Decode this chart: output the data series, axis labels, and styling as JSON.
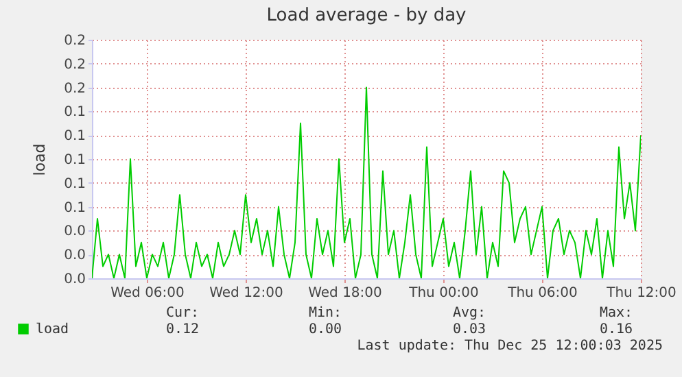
{
  "chart_data": {
    "type": "line",
    "title": "Load average - by day",
    "ylabel": "load",
    "x": [
      "2025-12-24T02:40",
      "2025-12-24T03:00",
      "2025-12-24T03:20",
      "2025-12-24T03:40",
      "2025-12-24T04:00",
      "2025-12-24T04:20",
      "2025-12-24T04:40",
      "2025-12-24T05:00",
      "2025-12-24T05:20",
      "2025-12-24T05:40",
      "2025-12-24T06:00",
      "2025-12-24T06:20",
      "2025-12-24T06:40",
      "2025-12-24T07:00",
      "2025-12-24T07:20",
      "2025-12-24T07:40",
      "2025-12-24T08:00",
      "2025-12-24T08:20",
      "2025-12-24T08:40",
      "2025-12-24T09:00",
      "2025-12-24T09:20",
      "2025-12-24T09:40",
      "2025-12-24T10:00",
      "2025-12-24T10:20",
      "2025-12-24T10:40",
      "2025-12-24T11:00",
      "2025-12-24T11:20",
      "2025-12-24T11:40",
      "2025-12-24T12:00",
      "2025-12-24T12:20",
      "2025-12-24T12:40",
      "2025-12-24T13:00",
      "2025-12-24T13:20",
      "2025-12-24T13:40",
      "2025-12-24T14:00",
      "2025-12-24T14:20",
      "2025-12-24T14:40",
      "2025-12-24T15:00",
      "2025-12-24T15:20",
      "2025-12-24T15:40",
      "2025-12-24T16:00",
      "2025-12-24T16:20",
      "2025-12-24T16:40",
      "2025-12-24T17:00",
      "2025-12-24T17:20",
      "2025-12-24T17:40",
      "2025-12-24T18:00",
      "2025-12-24T18:20",
      "2025-12-24T18:40",
      "2025-12-24T19:00",
      "2025-12-24T19:20",
      "2025-12-24T19:40",
      "2025-12-24T20:00",
      "2025-12-24T20:20",
      "2025-12-24T20:40",
      "2025-12-24T21:00",
      "2025-12-24T21:20",
      "2025-12-24T21:40",
      "2025-12-24T22:00",
      "2025-12-24T22:20",
      "2025-12-24T22:40",
      "2025-12-24T23:00",
      "2025-12-24T23:20",
      "2025-12-24T23:40",
      "2025-12-25T00:00",
      "2025-12-25T00:20",
      "2025-12-25T00:40",
      "2025-12-25T01:00",
      "2025-12-25T01:20",
      "2025-12-25T01:40",
      "2025-12-25T02:00",
      "2025-12-25T02:20",
      "2025-12-25T02:40",
      "2025-12-25T03:00",
      "2025-12-25T03:20",
      "2025-12-25T03:40",
      "2025-12-25T04:00",
      "2025-12-25T04:20",
      "2025-12-25T04:40",
      "2025-12-25T05:00",
      "2025-12-25T05:20",
      "2025-12-25T05:40",
      "2025-12-25T06:00",
      "2025-12-25T06:20",
      "2025-12-25T06:40",
      "2025-12-25T07:00",
      "2025-12-25T07:20",
      "2025-12-25T07:40",
      "2025-12-25T08:00",
      "2025-12-25T08:20",
      "2025-12-25T08:40",
      "2025-12-25T09:00",
      "2025-12-25T09:20",
      "2025-12-25T09:40",
      "2025-12-25T10:00",
      "2025-12-25T10:20",
      "2025-12-25T10:40",
      "2025-12-25T11:00",
      "2025-12-25T11:20",
      "2025-12-25T11:40",
      "2025-12-25T12:00"
    ],
    "series": [
      {
        "name": "load",
        "color": "#00cc00",
        "values": [
          0.0,
          0.05,
          0.01,
          0.02,
          0.0,
          0.02,
          0.0,
          0.1,
          0.01,
          0.03,
          0.0,
          0.02,
          0.01,
          0.03,
          0.0,
          0.02,
          0.07,
          0.02,
          0.0,
          0.03,
          0.01,
          0.02,
          0.0,
          0.03,
          0.01,
          0.02,
          0.04,
          0.02,
          0.07,
          0.03,
          0.05,
          0.02,
          0.04,
          0.01,
          0.06,
          0.02,
          0.0,
          0.03,
          0.13,
          0.02,
          0.0,
          0.05,
          0.02,
          0.04,
          0.01,
          0.1,
          0.03,
          0.05,
          0.0,
          0.02,
          0.16,
          0.02,
          0.0,
          0.09,
          0.02,
          0.04,
          0.0,
          0.03,
          0.07,
          0.02,
          0.0,
          0.11,
          0.01,
          0.03,
          0.05,
          0.01,
          0.03,
          0.0,
          0.04,
          0.09,
          0.02,
          0.06,
          0.0,
          0.03,
          0.01,
          0.09,
          0.08,
          0.03,
          0.05,
          0.06,
          0.02,
          0.04,
          0.06,
          0.0,
          0.04,
          0.05,
          0.02,
          0.04,
          0.03,
          0.0,
          0.04,
          0.02,
          0.05,
          0.0,
          0.04,
          0.01,
          0.11,
          0.05,
          0.08,
          0.04,
          0.12
        ]
      }
    ],
    "xlim": [
      "2025-12-24T02:40",
      "2025-12-25T12:00"
    ],
    "xticks": [
      {
        "value": "2025-12-24T06:00",
        "label": "Wed 06:00"
      },
      {
        "value": "2025-12-24T12:00",
        "label": "Wed 12:00"
      },
      {
        "value": "2025-12-24T18:00",
        "label": "Wed 18:00"
      },
      {
        "value": "2025-12-25T00:00",
        "label": "Thu 00:00"
      },
      {
        "value": "2025-12-25T06:00",
        "label": "Thu 06:00"
      },
      {
        "value": "2025-12-25T12:00",
        "label": "Thu 12:00"
      }
    ],
    "ylim": [
      0,
      0.2
    ],
    "yticks": [
      {
        "value": 0,
        "label": "0.0"
      },
      {
        "value": 0.02,
        "label": "0.0"
      },
      {
        "value": 0.04,
        "label": "0.0"
      },
      {
        "value": 0.06,
        "label": "0.1"
      },
      {
        "value": 0.08,
        "label": "0.1"
      },
      {
        "value": 0.1,
        "label": "0.1"
      },
      {
        "value": 0.12,
        "label": "0.1"
      },
      {
        "value": 0.14,
        "label": "0.1"
      },
      {
        "value": 0.16,
        "label": "0.2"
      },
      {
        "value": 0.18,
        "label": "0.2"
      },
      {
        "value": 0.2,
        "label": "0.2"
      }
    ],
    "grid": true,
    "legend": "bottom",
    "line_style": "solid",
    "annotations": [
      "Cur:",
      "Min:",
      "Avg:",
      "Max:",
      "0.12",
      "0.00",
      "0.03",
      "0.16",
      "Last update: Thu Dec 25 12:00:03 2025"
    ]
  }
}
